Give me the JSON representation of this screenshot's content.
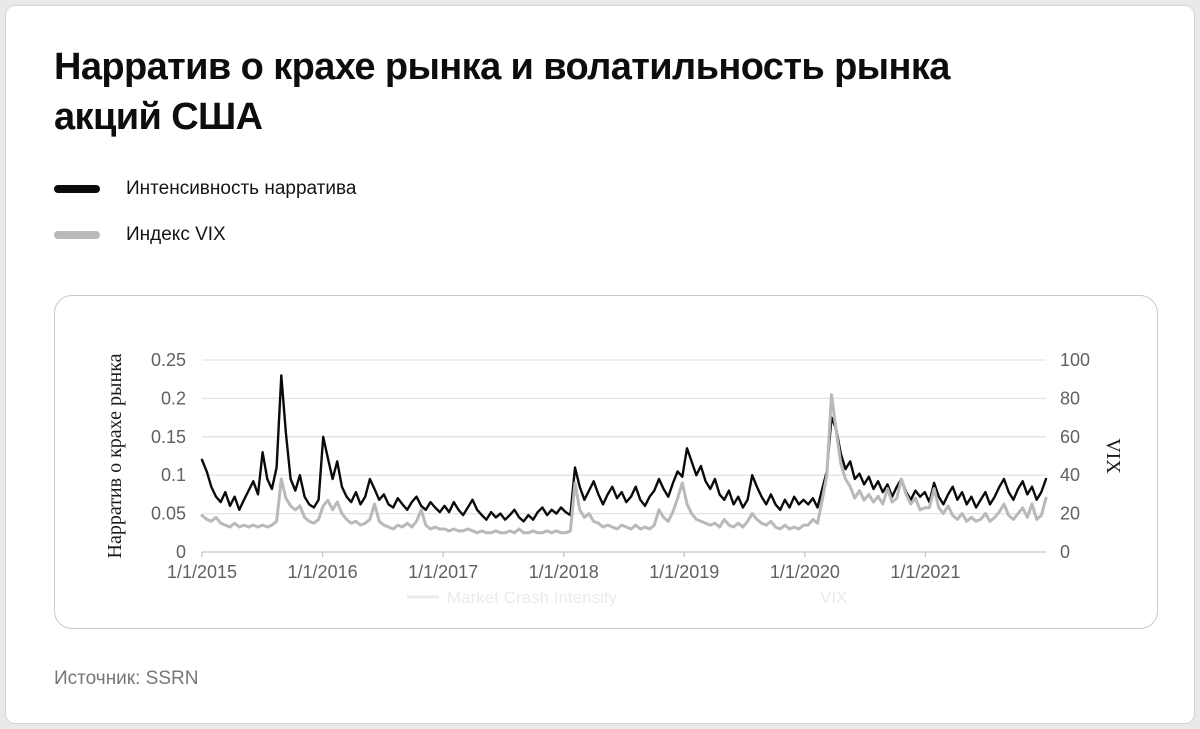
{
  "title": "Нарратив о крахе рынка и волатильность рынка акций США",
  "legend": {
    "items": [
      {
        "label": "Интенсивность нарратива",
        "color": "#0b0b0b"
      },
      {
        "label": "Индекс VIX",
        "color": "#b9b9b9"
      }
    ]
  },
  "source": "Источник: SSRN",
  "colors": {
    "grid": "#e3e3e3",
    "axis_baseline": "#c7c7c7",
    "tick_text": "#616161",
    "axis_title_text": "#1a1a1a",
    "watermark": "#ebebeb"
  },
  "chart_data": {
    "type": "line",
    "title": "Нарратив о крахе рынка и волатильность рынка акций США",
    "x_tick_labels": [
      "1/1/2015",
      "1/1/2016",
      "1/1/2017",
      "1/1/2018",
      "1/1/2019",
      "1/1/2020",
      "1/1/2021"
    ],
    "x_range_years": [
      2015,
      2022
    ],
    "sampling": "biweekly from 2015-01 to 2021-12",
    "grid": "horizontal",
    "left_axis": {
      "label": "Нарратив о крахе рынка",
      "range": [
        0,
        0.25
      ],
      "ticks": [
        0,
        0.05,
        0.1,
        0.15,
        0.2,
        0.25
      ],
      "tick_labels": [
        "0",
        "0.05",
        "0.1",
        "0.15",
        "0.2",
        "0.25"
      ]
    },
    "right_axis": {
      "label": "VIX",
      "range": [
        0,
        100
      ],
      "ticks": [
        0,
        20,
        40,
        60,
        80,
        100
      ],
      "tick_labels": [
        "0",
        "20",
        "40",
        "60",
        "80",
        "100"
      ]
    },
    "watermark_legend": {
      "items": [
        "Market Crash Intensity",
        "VIX"
      ]
    },
    "series": [
      {
        "name": "Интенсивность нарратива",
        "axis": "left",
        "color": "#0b0b0b",
        "stroke_width": 2.4,
        "values": [
          0.12,
          0.105,
          0.085,
          0.072,
          0.065,
          0.078,
          0.06,
          0.072,
          0.055,
          0.068,
          0.08,
          0.092,
          0.075,
          0.13,
          0.095,
          0.082,
          0.11,
          0.23,
          0.155,
          0.095,
          0.08,
          0.1,
          0.072,
          0.062,
          0.058,
          0.068,
          0.15,
          0.122,
          0.095,
          0.118,
          0.085,
          0.072,
          0.065,
          0.078,
          0.062,
          0.072,
          0.095,
          0.082,
          0.068,
          0.075,
          0.062,
          0.058,
          0.07,
          0.062,
          0.055,
          0.065,
          0.072,
          0.06,
          0.055,
          0.065,
          0.058,
          0.052,
          0.06,
          0.052,
          0.065,
          0.055,
          0.048,
          0.058,
          0.068,
          0.055,
          0.048,
          0.042,
          0.052,
          0.045,
          0.05,
          0.042,
          0.048,
          0.055,
          0.045,
          0.04,
          0.048,
          0.042,
          0.052,
          0.058,
          0.048,
          0.055,
          0.05,
          0.058,
          0.052,
          0.048,
          0.11,
          0.085,
          0.068,
          0.08,
          0.092,
          0.075,
          0.062,
          0.075,
          0.085,
          0.07,
          0.078,
          0.065,
          0.072,
          0.085,
          0.068,
          0.06,
          0.072,
          0.08,
          0.095,
          0.082,
          0.072,
          0.09,
          0.105,
          0.098,
          0.135,
          0.118,
          0.1,
          0.112,
          0.092,
          0.082,
          0.095,
          0.075,
          0.068,
          0.08,
          0.062,
          0.072,
          0.058,
          0.068,
          0.1,
          0.085,
          0.072,
          0.062,
          0.075,
          0.062,
          0.055,
          0.068,
          0.058,
          0.072,
          0.062,
          0.068,
          0.062,
          0.07,
          0.058,
          0.082,
          0.105,
          0.175,
          0.16,
          0.128,
          0.108,
          0.118,
          0.095,
          0.102,
          0.088,
          0.098,
          0.082,
          0.092,
          0.078,
          0.088,
          0.072,
          0.085,
          0.095,
          0.078,
          0.068,
          0.08,
          0.072,
          0.078,
          0.065,
          0.09,
          0.072,
          0.062,
          0.075,
          0.085,
          0.068,
          0.078,
          0.062,
          0.072,
          0.058,
          0.068,
          0.078,
          0.062,
          0.072,
          0.085,
          0.095,
          0.078,
          0.068,
          0.082,
          0.092,
          0.075,
          0.085,
          0.068,
          0.078,
          0.095
        ]
      },
      {
        "name": "Индекс VIX",
        "axis": "right",
        "color": "#b9b9b9",
        "stroke_width": 3,
        "values": [
          19,
          17,
          16,
          18,
          15,
          14,
          13,
          15,
          13,
          14,
          13,
          14,
          13,
          14,
          13,
          14,
          16,
          38,
          28,
          24,
          22,
          24,
          18,
          16,
          15,
          17,
          24,
          27,
          22,
          26,
          20,
          17,
          15,
          16,
          14,
          15,
          17,
          25,
          16,
          14,
          13,
          12,
          14,
          13,
          15,
          13,
          16,
          22,
          14,
          12,
          13,
          12,
          12,
          11,
          12,
          11,
          11,
          12,
          11,
          10,
          11,
          10,
          10,
          11,
          10,
          10,
          11,
          10,
          12,
          10,
          10,
          11,
          10,
          10,
          11,
          10,
          11,
          10,
          10,
          11,
          36,
          22,
          18,
          20,
          16,
          15,
          13,
          14,
          13,
          12,
          14,
          13,
          12,
          14,
          12,
          13,
          12,
          14,
          22,
          18,
          16,
          21,
          28,
          36,
          25,
          20,
          17,
          16,
          15,
          14,
          15,
          13,
          17,
          14,
          13,
          15,
          13,
          16,
          20,
          17,
          15,
          14,
          16,
          13,
          12,
          14,
          12,
          13,
          12,
          14,
          14,
          17,
          15,
          27,
          40,
          82,
          63,
          46,
          38,
          34,
          28,
          32,
          27,
          30,
          26,
          29,
          25,
          33,
          26,
          28,
          38,
          30,
          25,
          28,
          22,
          23,
          23,
          33,
          23,
          20,
          24,
          19,
          17,
          20,
          16,
          18,
          16,
          17,
          20,
          16,
          18,
          21,
          25,
          19,
          17,
          20,
          23,
          18,
          25,
          17,
          19,
          28
        ]
      }
    ]
  }
}
